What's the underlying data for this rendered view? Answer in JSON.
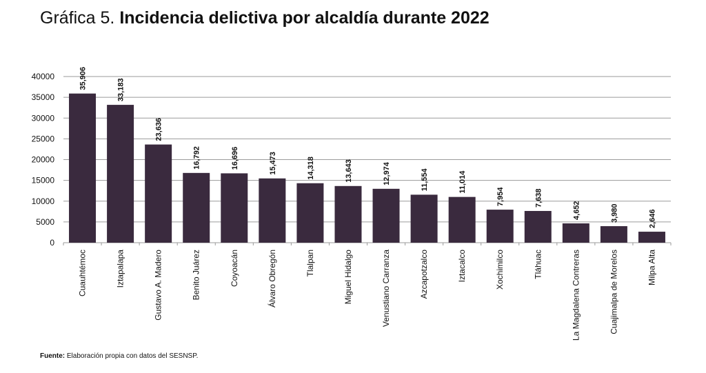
{
  "title": {
    "prefix": "Gráfica 5.",
    "main": "Incidencia delictiva por alcaldía durante 2022"
  },
  "source": {
    "label": "Fuente:",
    "text": "Elaboración propia con datos del SESNSP."
  },
  "colors": {
    "bar": "#3a2a3e",
    "grid": "#9a9a9a",
    "text": "#111111"
  },
  "chart_data": {
    "type": "bar",
    "categories": [
      "Cuauhtémoc",
      "Iztapalapa",
      "Gustavo A. Madero",
      "Benito Juárez",
      "Coyoacán",
      "Álvaro Obregón",
      "Tlalpan",
      "Miguel Hidalgo",
      "Venustiano Carranza",
      "Azcapotzalco",
      "Iztacalco",
      "Xochimilco",
      "Tláhuac",
      "La Magdalena Contreras",
      "Cuajimalpa de Morelos",
      "Milpa Alta"
    ],
    "values": [
      35906,
      33183,
      23636,
      16792,
      16696,
      15473,
      14318,
      13643,
      12974,
      11554,
      11014,
      7954,
      7638,
      4652,
      3980,
      2646
    ],
    "value_labels": [
      "35,906",
      "33,183",
      "23,636",
      "16,792",
      "16,696",
      "15,473",
      "14,318",
      "13,643",
      "12,974",
      "11,554",
      "11,014",
      "7,954",
      "7,638",
      "4,652",
      "3,980",
      "2,646"
    ],
    "y_ticks": [
      0,
      5000,
      10000,
      15000,
      20000,
      25000,
      30000,
      35000,
      40000
    ],
    "ylim": [
      0,
      40000
    ],
    "grid": true,
    "legend": "none"
  }
}
